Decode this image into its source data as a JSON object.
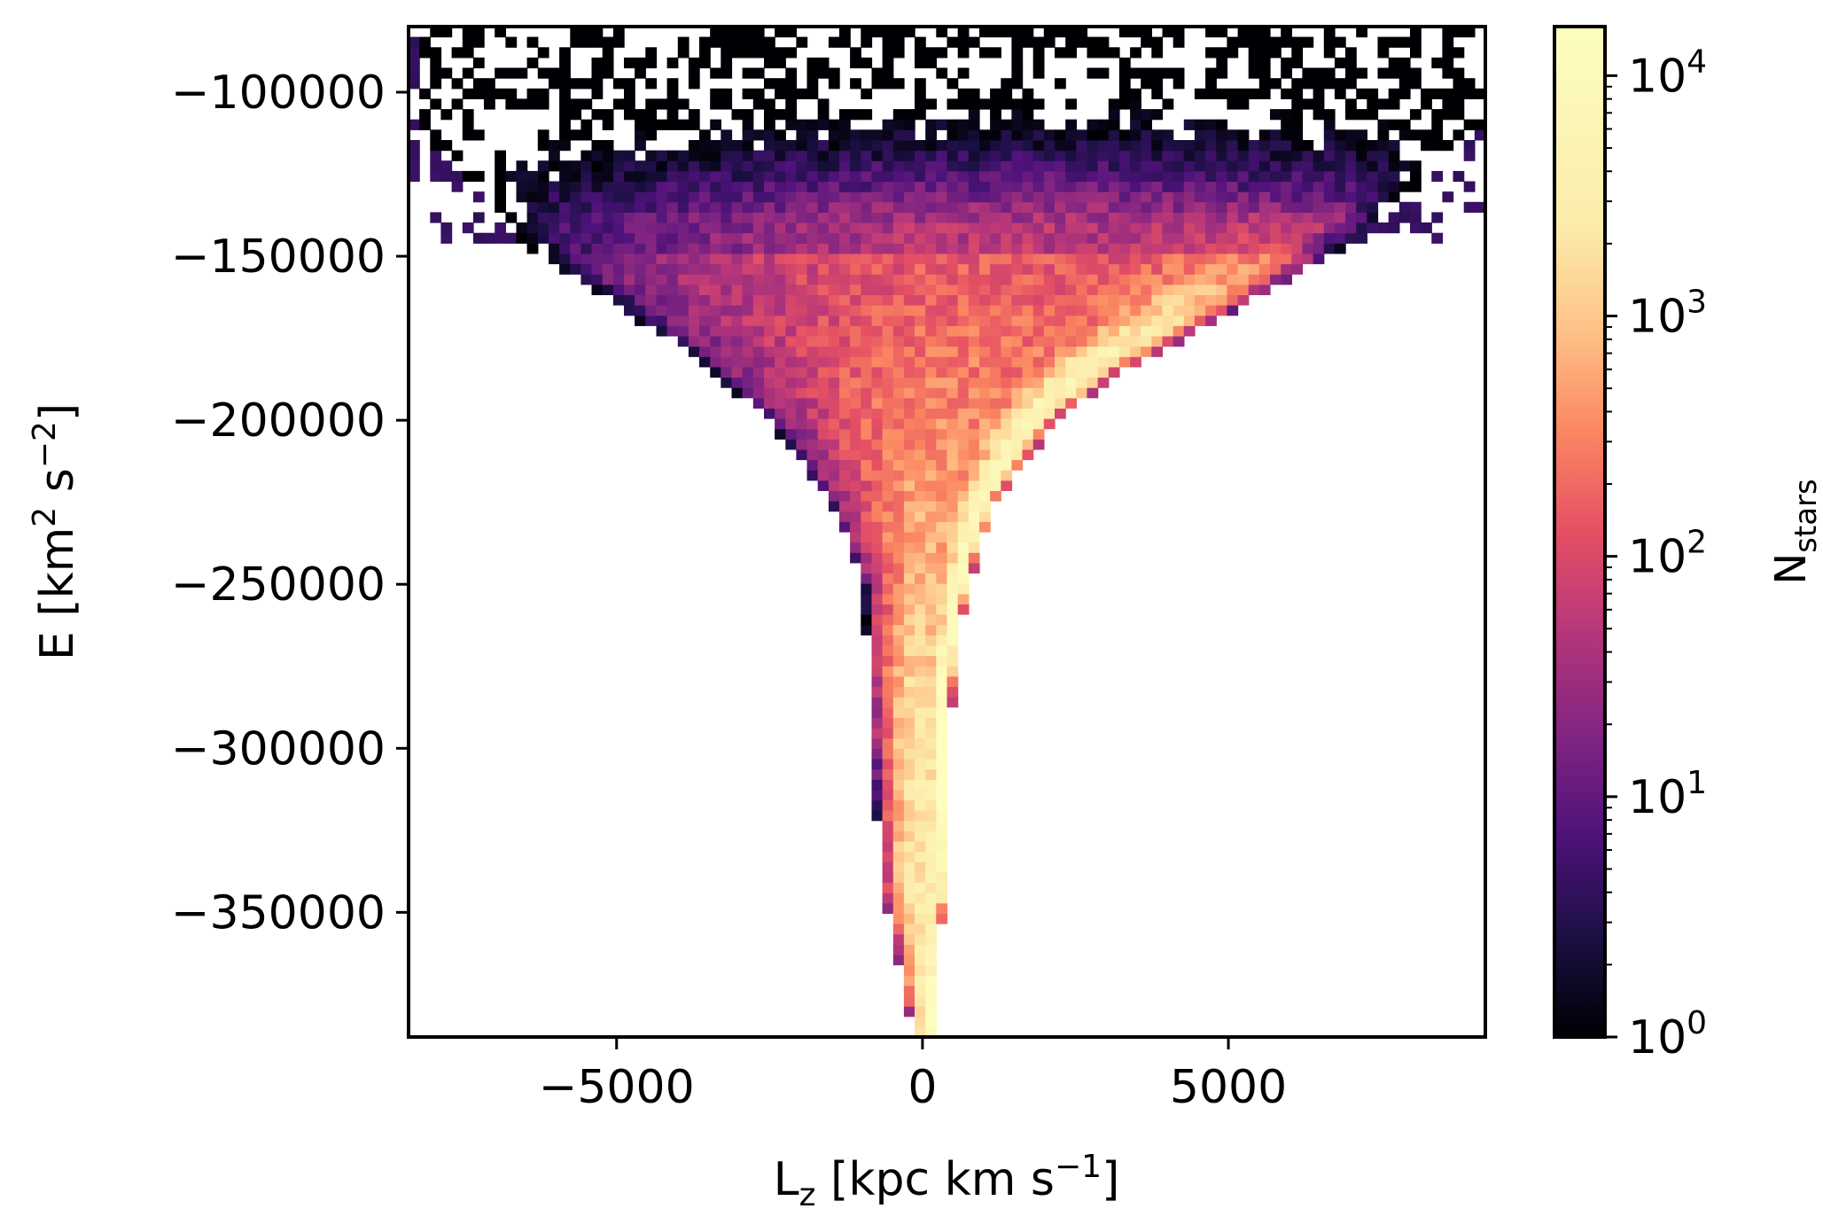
{
  "chart_data": {
    "type": "heatmap",
    "title": "",
    "xlabel": "L",
    "xlabel_sub": "z",
    "xlabel_rest": " [kpc km s",
    "xlabel_sup": "−1",
    "xlabel_end": "]",
    "ylabel": "E [km",
    "ylabel_sup1": "2",
    "ylabel_mid": " s",
    "ylabel_sup2": "−2",
    "ylabel_end": "]",
    "xlim": [
      -8400,
      9200
    ],
    "ylim": [
      -388000,
      -80000
    ],
    "xticks": [
      -5000,
      0,
      5000
    ],
    "xtick_labels": [
      "−5000",
      "0",
      "5000"
    ],
    "yticks": [
      -100000,
      -150000,
      -200000,
      -250000,
      -300000,
      -350000
    ],
    "ytick_labels": [
      "−100000",
      "−150000",
      "−200000",
      "−250000",
      "−300000",
      "−350000"
    ],
    "grid": false,
    "colormap": "magma",
    "color_scale": "log",
    "colorbar": {
      "label": "N",
      "label_sub": "stars",
      "range": [
        1,
        16000
      ],
      "tick_values": [
        1,
        10,
        100,
        1000,
        10000
      ],
      "tick_base": "10",
      "tick_exponents": [
        "0",
        "1",
        "2",
        "3",
        "4"
      ]
    },
    "bins": {
      "x_count": 100,
      "y_count": 98
    },
    "density_model": {
      "description_of_distribution": "counts per bin; funnel shape narrowing to Lz≈0 at low energy, ridge along prograde edge",
      "bottom_energy": -388000,
      "edge_left_points": [
        [
          -388000,
          -150
        ],
        [
          -340000,
          -700
        ],
        [
          -300000,
          -800
        ],
        [
          -275000,
          -900
        ],
        [
          -250000,
          -950
        ],
        [
          -225000,
          -1500
        ],
        [
          -200000,
          -2500
        ],
        [
          -180000,
          -3800
        ],
        [
          -165000,
          -5000
        ],
        [
          -155000,
          -5800
        ],
        [
          -145000,
          -6600
        ],
        [
          -130000,
          -7200
        ],
        [
          -115000,
          -8200
        ]
      ],
      "edge_right_points": [
        [
          -388000,
          150
        ],
        [
          -345000,
          350
        ],
        [
          -300000,
          450
        ],
        [
          -270000,
          550
        ],
        [
          -250000,
          750
        ],
        [
          -225000,
          1200
        ],
        [
          -200000,
          2200
        ],
        [
          -185000,
          3300
        ],
        [
          -170000,
          4800
        ],
        [
          -158000,
          5900
        ],
        [
          -148000,
          6800
        ],
        [
          -138000,
          7500
        ],
        [
          -125000,
          8300
        ],
        [
          -110000,
          9200
        ],
        [
          -100000,
          9200
        ]
      ],
      "ridge_peak_count": 16000,
      "interior_peak_count": 2500,
      "top_sparse_energy": -95000
    }
  },
  "colors": {
    "axis": "#000000",
    "background": "#ffffff"
  }
}
